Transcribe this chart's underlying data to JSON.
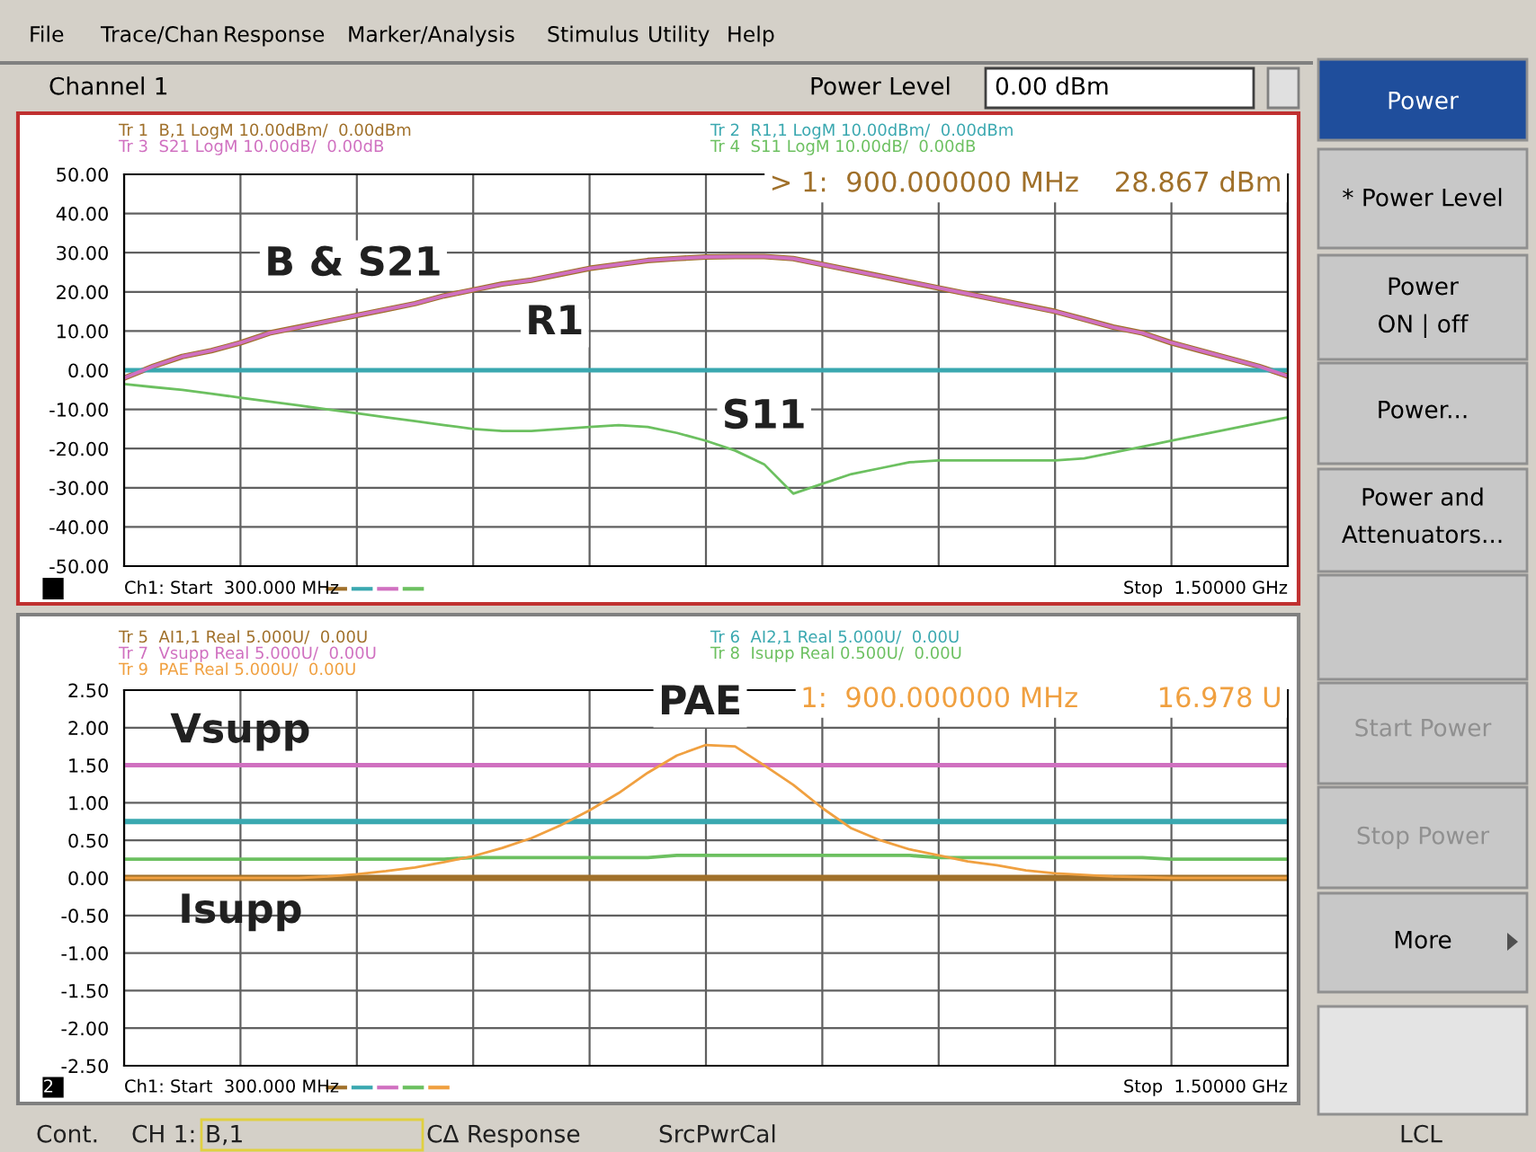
{
  "chart_data": [
    {
      "type": "line",
      "categories": [
        null,
        null,
        null,
        null,
        null,
        null,
        null,
        null,
        null,
        null,
        null,
        null,
        null,
        null,
        null,
        null,
        null,
        null,
        null,
        null,
        null,
        null,
        null,
        null,
        null,
        null,
        null,
        null,
        null,
        null,
        null,
        null,
        null,
        null,
        null,
        null,
        null,
        null,
        null,
        null,
        null
      ],
      "series": [
        {
          "name": "Tr 1  B,1 LogM 10.00dBm/  0.00dBm",
          "color": "#a0702a",
          "values": [
            -2,
            1,
            3.5,
            5,
            7,
            9.5,
            11,
            12.5,
            14,
            15.5,
            17,
            19,
            20.5,
            22,
            23,
            24.5,
            26,
            27,
            28,
            28.5,
            28.9,
            29,
            29,
            28.5,
            27,
            25.5,
            24,
            22.5,
            21,
            19.5,
            18,
            16.5,
            15,
            13,
            11,
            9.5,
            7,
            5,
            3,
            1,
            -1.5
          ]
        },
        {
          "name": "Tr 2  R1,1 LogM 10.00dBm/  0.00dBm",
          "color": "#3aa8b0",
          "values": [
            0,
            0,
            0,
            0,
            0,
            0,
            0,
            0,
            0,
            0,
            0,
            0,
            0,
            0,
            0,
            0,
            0,
            0,
            0,
            0,
            0,
            0,
            0,
            0,
            0,
            0,
            0,
            0,
            0,
            0,
            0,
            0,
            0,
            0,
            0,
            0,
            0,
            0,
            0,
            0,
            0
          ]
        },
        {
          "name": "Tr 3  S21 LogM 10.00dB/  0.00dB",
          "color": "#d070c0",
          "values": [
            -2,
            1,
            3.5,
            5,
            7,
            9.5,
            11,
            12.5,
            14,
            15.5,
            17,
            19,
            20.5,
            22,
            23,
            24.5,
            26,
            27,
            28,
            28.5,
            28.9,
            29,
            29,
            28.5,
            27,
            25.5,
            24,
            22.5,
            21,
            19.5,
            18,
            16.5,
            15,
            13,
            11,
            9.5,
            7,
            5,
            3,
            1,
            -1.5
          ]
        },
        {
          "name": "Tr 4  S11 LogM 10.00dB/  0.00dB",
          "color": "#6cc060",
          "values": [
            -3.5,
            -4.3,
            -5,
            -6,
            -7,
            -8,
            -9,
            -10,
            -11,
            -12,
            -13,
            -14,
            -15,
            -15.5,
            -15.5,
            -15,
            -14.5,
            -14,
            -14.5,
            -16,
            -18,
            -20.5,
            -24,
            -31.5,
            -29,
            -26.5,
            -25,
            -23.5,
            -23,
            -23,
            -23,
            -23,
            -23,
            -22.5,
            -21,
            -19.5,
            -18,
            -16.5,
            -15,
            -13.5,
            -12
          ]
        }
      ],
      "ylim": [
        -50,
        50
      ],
      "yticks": [
        {
          "value": 50,
          "label": "50.00"
        },
        {
          "value": 40,
          "label": "40.00"
        },
        {
          "value": 30,
          "label": "30.00"
        },
        {
          "value": 20,
          "label": "20.00"
        },
        {
          "value": 10,
          "label": "10.00"
        },
        {
          "value": 0,
          "label": "0.00"
        },
        {
          "value": -10,
          "label": "-10.00"
        },
        {
          "value": -20,
          "label": "-20.00"
        },
        {
          "value": -30,
          "label": "-30.00"
        },
        {
          "value": -40,
          "label": "-40.00"
        },
        {
          "value": -50,
          "label": "-50.00"
        }
      ],
      "grid": true,
      "annotations": [
        "> 1:  900.000000 MHz    28.867 dBm",
        "Ch1: Start  300.000 MHz",
        "Stop  1.50000 GHz",
        "B & S21",
        "R1",
        "S11"
      ]
    },
    {
      "type": "line",
      "categories": [
        null,
        null,
        null,
        null,
        null,
        null,
        null,
        null,
        null,
        null,
        null,
        null,
        null,
        null,
        null,
        null,
        null,
        null,
        null,
        null,
        null,
        null,
        null,
        null,
        null,
        null,
        null,
        null,
        null,
        null,
        null,
        null,
        null,
        null,
        null,
        null,
        null,
        null,
        null,
        null,
        null
      ],
      "series": [
        {
          "name": "Tr 5  AI1,1 Real 5.000U/  0.00U",
          "color": "#a0702a",
          "values": [
            0,
            0,
            0,
            0,
            0,
            0,
            0,
            0,
            0,
            0,
            0,
            0,
            0,
            0,
            0,
            0,
            0,
            0,
            0,
            0,
            0,
            0,
            0,
            0,
            0,
            0,
            0,
            0,
            0,
            0,
            0,
            0,
            0,
            0,
            0,
            0,
            0,
            0,
            0,
            0,
            0
          ]
        },
        {
          "name": "Tr 6  AI2,1 Real 5.000U/  0.00U",
          "color": "#3aa8b0",
          "values": [
            0.75,
            0.75,
            0.75,
            0.75,
            0.75,
            0.75,
            0.75,
            0.75,
            0.75,
            0.75,
            0.75,
            0.75,
            0.75,
            0.75,
            0.75,
            0.75,
            0.75,
            0.75,
            0.75,
            0.75,
            0.75,
            0.75,
            0.75,
            0.75,
            0.75,
            0.75,
            0.75,
            0.75,
            0.75,
            0.75,
            0.75,
            0.75,
            0.75,
            0.75,
            0.75,
            0.75,
            0.75,
            0.75,
            0.75,
            0.75,
            0.75
          ]
        },
        {
          "name": "Tr 7  Vsupp Real 5.000U/  0.00U",
          "color": "#d070c0",
          "values": [
            1.5,
            1.5,
            1.5,
            1.5,
            1.5,
            1.5,
            1.5,
            1.5,
            1.5,
            1.5,
            1.5,
            1.5,
            1.5,
            1.5,
            1.5,
            1.5,
            1.5,
            1.5,
            1.5,
            1.5,
            1.5,
            1.5,
            1.5,
            1.5,
            1.5,
            1.5,
            1.5,
            1.5,
            1.5,
            1.5,
            1.5,
            1.5,
            1.5,
            1.5,
            1.5,
            1.5,
            1.5,
            1.5,
            1.5,
            1.5,
            1.5
          ]
        },
        {
          "name": "Tr 8  Isupp Real 0.500U/  0.00U",
          "color": "#6cc060",
          "values": [
            0.25,
            0.25,
            0.25,
            0.25,
            0.25,
            0.25,
            0.25,
            0.25,
            0.25,
            0.25,
            0.25,
            0.25,
            0.27,
            0.27,
            0.27,
            0.27,
            0.27,
            0.27,
            0.27,
            0.3,
            0.3,
            0.3,
            0.3,
            0.3,
            0.3,
            0.3,
            0.3,
            0.3,
            0.27,
            0.27,
            0.27,
            0.27,
            0.27,
            0.27,
            0.27,
            0.27,
            0.25,
            0.25,
            0.25,
            0.25,
            0.25
          ]
        },
        {
          "name": "Tr 9  PAE Real 5.000U/  0.00U",
          "color": "#f0a040",
          "values": [
            0,
            0,
            0,
            0,
            0,
            0,
            0,
            0.02,
            0.05,
            0.09,
            0.14,
            0.21,
            0.29,
            0.4,
            0.53,
            0.7,
            0.9,
            1.13,
            1.4,
            1.63,
            1.77,
            1.75,
            1.5,
            1.24,
            0.93,
            0.66,
            0.5,
            0.38,
            0.3,
            0.22,
            0.17,
            0.1,
            0.06,
            0.04,
            0.02,
            0.01,
            0,
            0,
            0,
            0,
            0
          ]
        }
      ],
      "ylim": [
        -2.5,
        2.5
      ],
      "yticks": [
        {
          "value": 2.5,
          "label": "2.50"
        },
        {
          "value": 2,
          "label": "2.00"
        },
        {
          "value": 1.5,
          "label": "1.50"
        },
        {
          "value": 1,
          "label": "1.00"
        },
        {
          "value": 0.5,
          "label": "0.50"
        },
        {
          "value": 0,
          "label": "0.00"
        },
        {
          "value": -0.5,
          "label": "-0.50"
        },
        {
          "value": -1,
          "label": "-1.00"
        },
        {
          "value": -1.5,
          "label": "-1.50"
        },
        {
          "value": -2,
          "label": "-2.00"
        },
        {
          "value": -2.5,
          "label": "-2.50"
        }
      ],
      "grid": true,
      "annotations": [
        "1:  900.000000 MHz         16.978 U",
        "Ch1: Start  300.000 MHz",
        "Stop  1.50000 GHz",
        "PAE",
        "Vsupp",
        "Isupp",
        "2"
      ]
    },
    {
      "type": "other",
      "annotations": [
        "File",
        "Trace/Chan",
        "Response",
        "Marker/Analysis",
        "Stimulus",
        "Utility",
        "Help",
        "Channel 1",
        "Power Level",
        "0.00 dBm",
        "Power",
        "* Power Level",
        "Power\nON | off",
        "Power...",
        "Power and\nAttenuators...",
        "Start Power",
        "Stop Power",
        "More",
        "Cont.",
        "CH 1:",
        "B,1",
        "CΔ Response",
        "SrcPwrCal",
        "LCL"
      ]
    }
  ]
}
